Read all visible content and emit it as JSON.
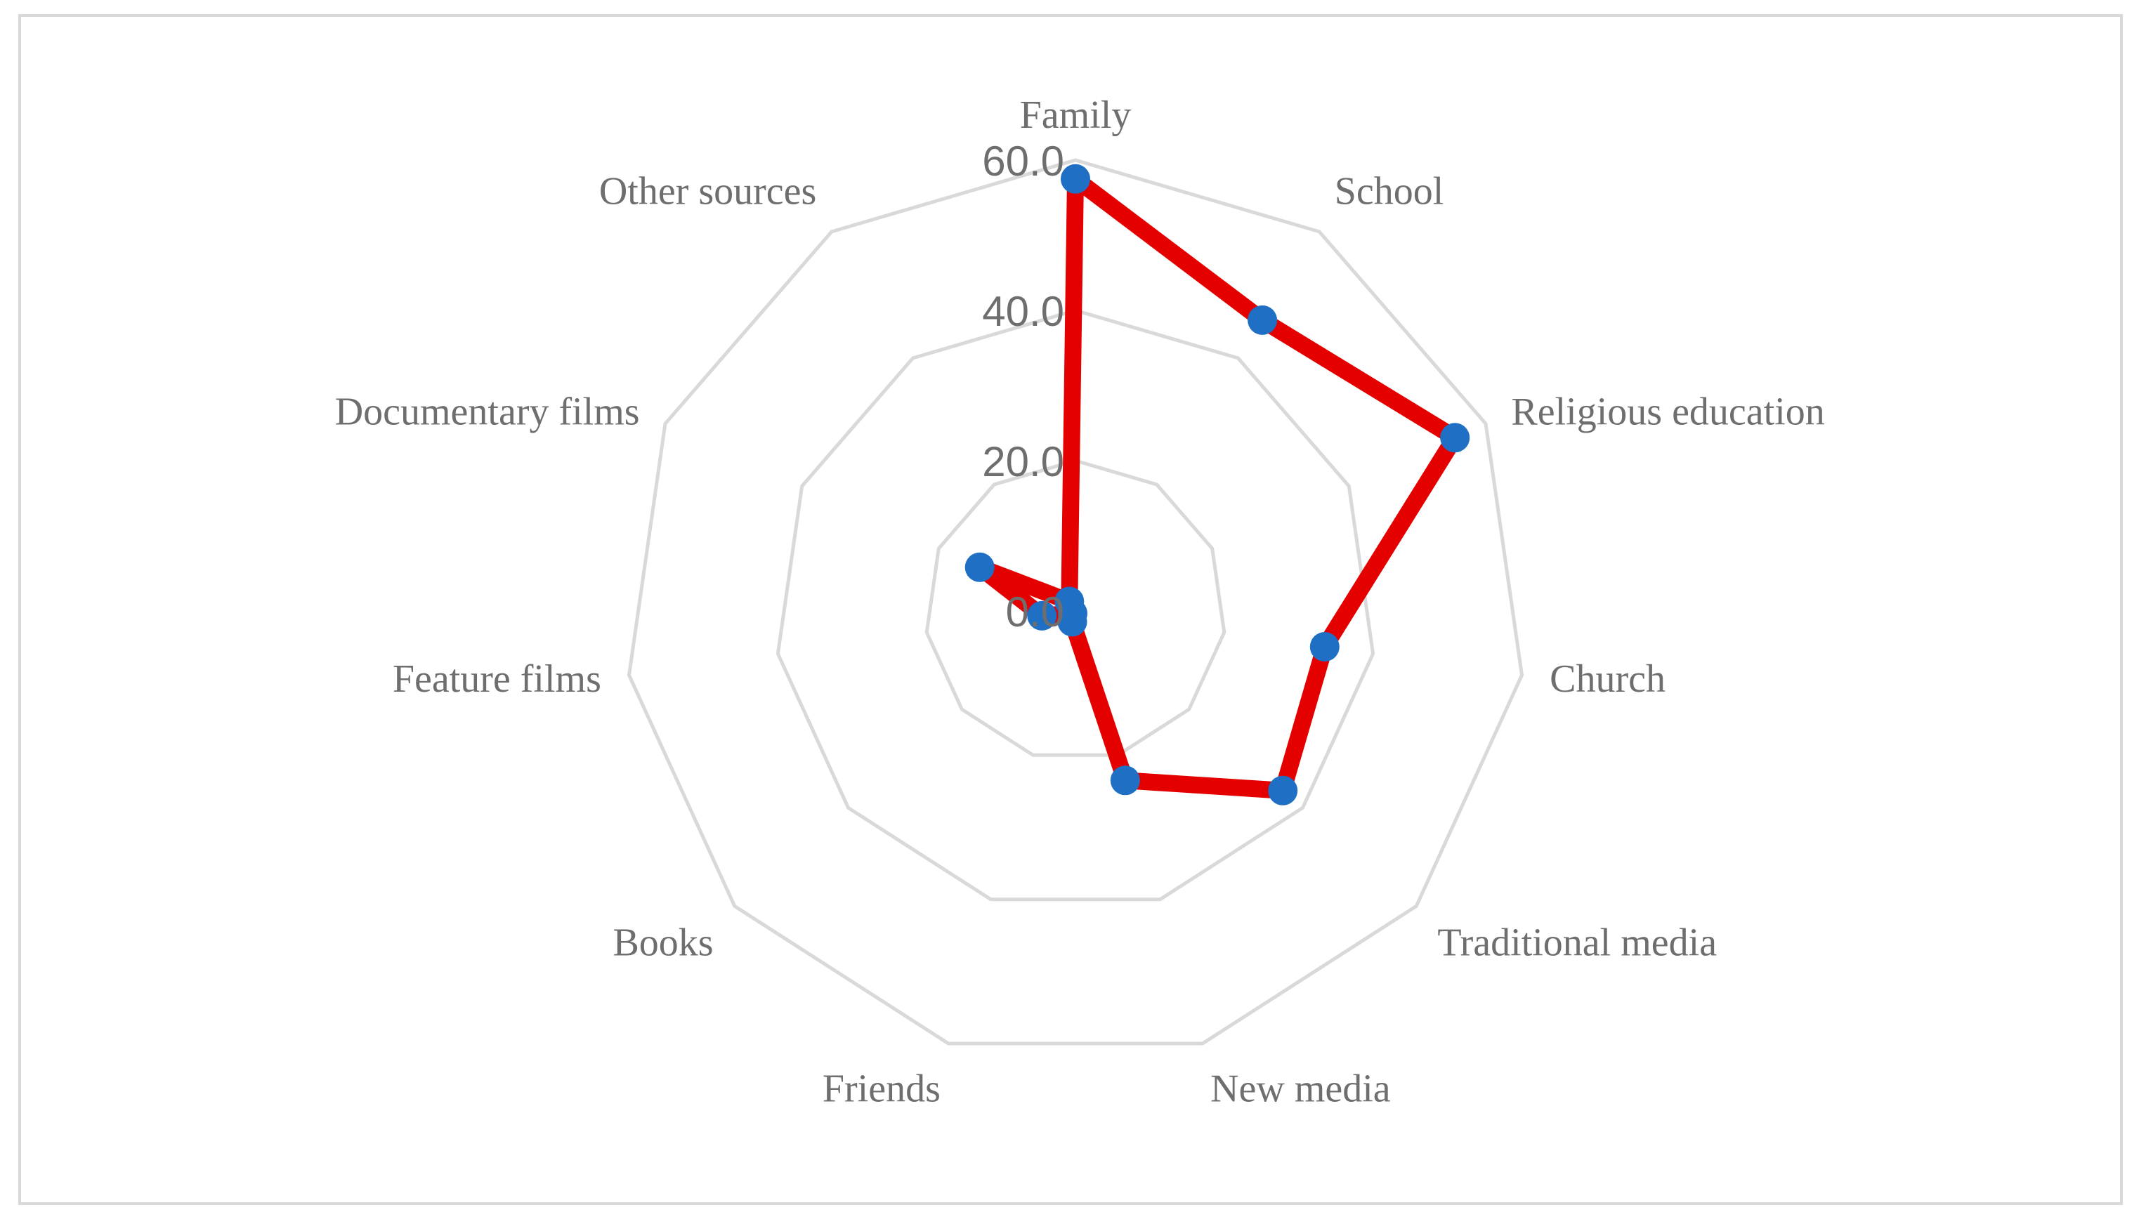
{
  "chart_data": {
    "type": "radar",
    "categories": [
      "Family",
      "School",
      "Religious education",
      "Church",
      "Traditional media",
      "New media",
      "Friends",
      "Books",
      "Feature films",
      "Documentary films",
      "Other sources"
    ],
    "series": [
      {
        "values": [
          57.5,
          46.0,
          55.5,
          33.5,
          36.5,
          23.5,
          1.5,
          0.5,
          4.5,
          14.0,
          1.5
        ]
      }
    ],
    "radial_ticks": [
      0,
      20,
      40,
      60
    ],
    "tick_labels": [
      "0.0",
      "20.0",
      "40.0",
      "60.0"
    ],
    "rmin": 0,
    "rmax": 60,
    "grid": true,
    "legend": "none",
    "colors": {
      "line": "#e50000",
      "marker": "#1f6fc5",
      "grid": "#d9d9d9",
      "text": "#6e6e6e"
    }
  }
}
